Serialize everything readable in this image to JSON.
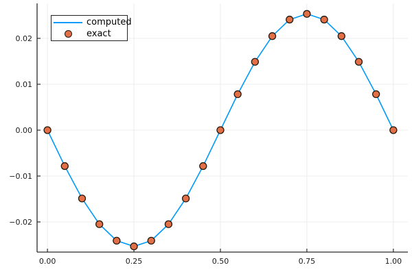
{
  "chart_data": {
    "type": "line",
    "title": "",
    "xlabel": "",
    "ylabel": "",
    "grid": true,
    "legend_position": "top-left",
    "xlim": [
      -0.03,
      1.042
    ],
    "ylim": [
      -0.02657,
      0.02761
    ],
    "xticks": [
      0.0,
      0.25,
      0.5,
      0.75,
      1.0
    ],
    "xtick_labels": [
      "0.00",
      "0.25",
      "0.50",
      "0.75",
      "1.00"
    ],
    "yticks": [
      -0.02,
      -0.01,
      0.0,
      0.01,
      0.02
    ],
    "ytick_labels": [
      "−0.02",
      "−0.01",
      "0.00",
      "0.01",
      "0.02"
    ],
    "x": [
      0.0,
      0.05,
      0.1,
      0.15,
      0.2,
      0.25,
      0.3,
      0.35,
      0.4,
      0.45,
      0.5,
      0.55,
      0.6,
      0.65,
      0.7,
      0.75,
      0.8,
      0.85,
      0.9,
      0.95,
      1.0
    ],
    "series": [
      {
        "name": "computed",
        "style": "line",
        "color": "#009af9",
        "values": [
          0.0,
          -0.00783,
          -0.01489,
          -0.02049,
          -0.02409,
          -0.02533,
          -0.02409,
          -0.02049,
          -0.01489,
          -0.00783,
          0.0,
          0.00783,
          0.01489,
          0.02049,
          0.02409,
          0.02533,
          0.02409,
          0.02049,
          0.01489,
          0.00783,
          0.0
        ]
      },
      {
        "name": "exact",
        "style": "scatter",
        "color": "#e26f46",
        "marker_stroke": "#241a10",
        "values": [
          0.0,
          -0.00783,
          -0.01489,
          -0.02049,
          -0.02409,
          -0.02533,
          -0.02409,
          -0.02049,
          -0.01489,
          -0.00783,
          0.0,
          0.00783,
          0.01489,
          0.02049,
          0.02409,
          0.02533,
          0.02409,
          0.02049,
          0.01489,
          0.00783,
          0.0
        ]
      }
    ],
    "colors": {
      "grid": "#ececec",
      "spine": "#2b2b2b",
      "tick": "#2b2b2b",
      "background": "#ffffff"
    }
  },
  "legend": {
    "items": [
      {
        "label": "computed"
      },
      {
        "label": "exact"
      }
    ]
  }
}
